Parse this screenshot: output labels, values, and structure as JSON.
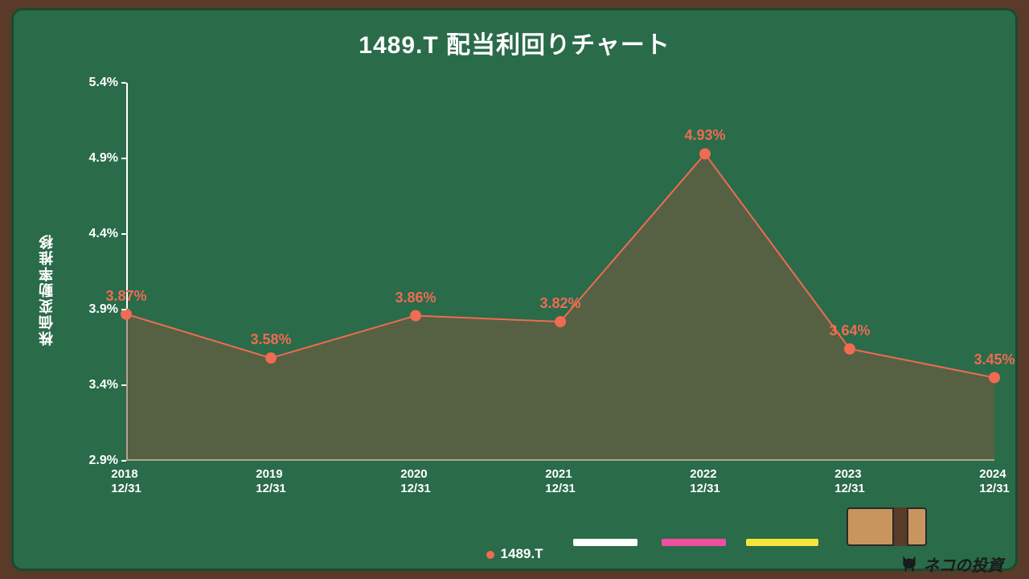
{
  "title": "1489.T 配当利回りチャート",
  "ylabel": "株価変動率推移",
  "legend_label": "1489.T",
  "brand": "ネコの投資",
  "chart": {
    "type": "area-line",
    "background_color": "#2a6b4a",
    "line_color": "#ef6b52",
    "marker_color": "#ef6b52",
    "area_fill": "rgba(120,90,60,0.55)",
    "axis_color": "#ffffff",
    "label_color": "#ef6b52",
    "text_color": "#ffffff",
    "line_width": 2,
    "marker_radius": 7,
    "ylim": [
      2.9,
      5.4
    ],
    "yticks": [
      2.9,
      3.4,
      3.9,
      4.4,
      4.9,
      5.4
    ],
    "ytick_labels": [
      "2.9%",
      "3.4%",
      "3.9%",
      "4.4%",
      "4.9%",
      "5.4%"
    ],
    "x_labels": [
      "2018\n12/31",
      "2019\n12/31",
      "2020\n12/31",
      "2021\n12/31",
      "2022\n12/31",
      "2023\n12/31",
      "2024\n12/31"
    ],
    "values": [
      3.87,
      3.58,
      3.86,
      3.82,
      4.93,
      3.64,
      3.45
    ],
    "value_labels": [
      "3.87%",
      "3.58%",
      "3.86%",
      "3.82%",
      "4.93%",
      "3.64%",
      "3.45%"
    ]
  }
}
